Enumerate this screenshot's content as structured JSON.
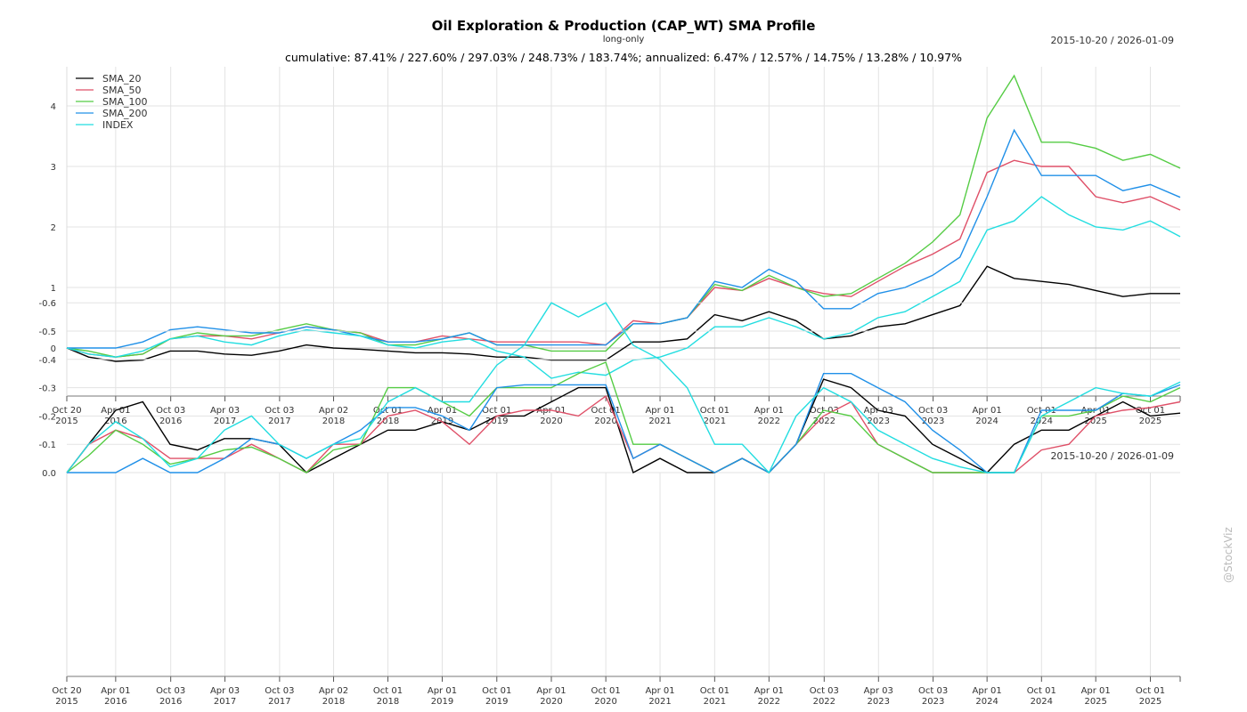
{
  "header": {
    "title": "Oil Exploration & Production (CAP_WT) SMA Profile",
    "subtitle": "long-only",
    "date_range": "2015-10-20 / 2026-01-09",
    "stats": "cumulative: 87.41% / 227.60% / 297.03% / 248.73% / 183.74%; annualized: 6.47% / 12.57% / 14.75% / 13.28% / 10.97%",
    "credit": "@StockViz"
  },
  "chart_data": [
    {
      "type": "line",
      "title": "Oil Exploration & Production (CAP_WT) SMA Profile",
      "legend_placement": "top-left",
      "grid": true,
      "ylim": [
        -0.79,
        4.65
      ],
      "yticks": [
        "0",
        "1",
        "2",
        "3",
        "4"
      ],
      "xticks": [
        [
          "Oct 20",
          "2015"
        ],
        [
          "Apr 01",
          "2016"
        ],
        [
          "Oct 03",
          "2016"
        ],
        [
          "Apr 03",
          "2017"
        ],
        [
          "Oct 03",
          "2017"
        ],
        [
          "Apr 02",
          "2018"
        ],
        [
          "Oct 01",
          "2018"
        ],
        [
          "Apr 01",
          "2019"
        ],
        [
          "Oct 01",
          "2019"
        ],
        [
          "Apr 01",
          "2020"
        ],
        [
          "Oct 01",
          "2020"
        ],
        [
          "Apr 01",
          "2021"
        ],
        [
          "Oct 01",
          "2021"
        ],
        [
          "Apr 01",
          "2022"
        ],
        [
          "Oct 03",
          "2022"
        ],
        [
          "Apr 03",
          "2023"
        ],
        [
          "Oct 03",
          "2023"
        ],
        [
          "Apr 01",
          "2024"
        ],
        [
          "Oct 01",
          "2024"
        ],
        [
          "Apr 01",
          "2025"
        ],
        [
          "Oct 01",
          "2025"
        ]
      ],
      "xtick_dates": [
        "2015-10-20",
        "2016-04-01",
        "2016-10-03",
        "2017-04-03",
        "2017-10-03",
        "2018-04-02",
        "2018-10-01",
        "2019-04-01",
        "2019-10-01",
        "2020-04-01",
        "2020-10-01",
        "2021-04-01",
        "2021-10-01",
        "2022-04-01",
        "2022-10-03",
        "2023-04-03",
        "2023-10-03",
        "2024-04-01",
        "2024-10-01",
        "2025-04-01",
        "2025-10-01"
      ],
      "x": [
        "2015-10-20",
        "2016-01",
        "2016-04",
        "2016-07",
        "2016-10",
        "2017-01",
        "2017-04",
        "2017-07",
        "2017-10",
        "2018-01",
        "2018-04",
        "2018-07",
        "2018-10",
        "2019-01",
        "2019-04",
        "2019-07",
        "2019-10",
        "2020-01",
        "2020-04",
        "2020-07",
        "2020-10",
        "2021-01",
        "2021-04",
        "2021-07",
        "2021-10",
        "2022-01",
        "2022-04",
        "2022-07",
        "2022-10",
        "2023-01",
        "2023-04",
        "2023-07",
        "2023-10",
        "2024-01",
        "2024-04",
        "2024-07",
        "2024-10",
        "2025-01",
        "2025-04",
        "2025-07",
        "2025-10",
        "2026-01-09"
      ],
      "series": [
        {
          "name": "SMA_20",
          "color": "#000000",
          "values": [
            0,
            -0.15,
            -0.22,
            -0.2,
            -0.05,
            -0.05,
            -0.1,
            -0.12,
            -0.05,
            0.05,
            0,
            -0.02,
            -0.05,
            -0.08,
            -0.08,
            -0.1,
            -0.15,
            -0.15,
            -0.2,
            -0.2,
            -0.2,
            0.1,
            0.1,
            0.15,
            0.55,
            0.45,
            0.6,
            0.45,
            0.15,
            0.2,
            0.35,
            0.4,
            0.55,
            0.7,
            1.35,
            1.15,
            1.1,
            1.05,
            0.95,
            0.85,
            0.9,
            0.9
          ]
        },
        {
          "name": "SMA_50",
          "color": "#df5068",
          "values": [
            0,
            -0.1,
            -0.15,
            -0.1,
            0.15,
            0.2,
            0.2,
            0.15,
            0.25,
            0.35,
            0.3,
            0.25,
            0.1,
            0.1,
            0.2,
            0.15,
            0.1,
            0.1,
            0.1,
            0.1,
            0.05,
            0.45,
            0.4,
            0.5,
            1.0,
            0.95,
            1.15,
            1.0,
            0.9,
            0.85,
            1.1,
            1.35,
            1.55,
            1.8,
            2.9,
            3.1,
            3.0,
            3.0,
            2.5,
            2.4,
            2.5,
            2.28
          ]
        },
        {
          "name": "SMA_100",
          "color": "#55cc44",
          "values": [
            0,
            -0.05,
            -0.15,
            -0.1,
            0.15,
            0.25,
            0.2,
            0.2,
            0.3,
            0.4,
            0.3,
            0.25,
            0.05,
            0.05,
            0.15,
            0.25,
            0.05,
            0.05,
            -0.05,
            -0.05,
            -0.05,
            0.4,
            0.4,
            0.5,
            1.05,
            0.95,
            1.2,
            1.0,
            0.85,
            0.9,
            1.15,
            1.4,
            1.75,
            2.2,
            3.8,
            4.5,
            3.4,
            3.4,
            3.3,
            3.1,
            3.2,
            2.97
          ]
        },
        {
          "name": "SMA_200",
          "color": "#2090e8",
          "values": [
            0,
            0,
            0,
            0.1,
            0.3,
            0.35,
            0.3,
            0.25,
            0.25,
            0.35,
            0.3,
            0.2,
            0.1,
            0.1,
            0.15,
            0.25,
            0.05,
            0.05,
            0.05,
            0.05,
            0.05,
            0.4,
            0.4,
            0.5,
            1.1,
            1.0,
            1.3,
            1.1,
            0.65,
            0.65,
            0.9,
            1.0,
            1.2,
            1.5,
            2.5,
            3.6,
            2.85,
            2.85,
            2.85,
            2.6,
            2.7,
            2.49
          ]
        },
        {
          "name": "INDEX",
          "color": "#22dde0",
          "values": [
            0,
            -0.1,
            -0.15,
            -0.05,
            0.15,
            0.2,
            0.1,
            0.05,
            0.2,
            0.3,
            0.25,
            0.2,
            0.05,
            0,
            0.1,
            0.15,
            -0.05,
            -0.15,
            -0.5,
            -0.4,
            -0.45,
            -0.2,
            -0.15,
            0,
            0.35,
            0.35,
            0.5,
            0.35,
            0.15,
            0.25,
            0.5,
            0.6,
            0.85,
            1.1,
            1.95,
            2.1,
            2.5,
            2.2,
            2.0,
            1.95,
            2.1,
            1.84
          ]
        }
      ]
    },
    {
      "type": "line",
      "date_range": "2015-10-20 / 2026-01-09",
      "grid": true,
      "ylim": [
        -0.72,
        0
      ],
      "yticks": [
        "0.0",
        "-0.1",
        "-0.2",
        "-0.3",
        "-0.4",
        "-0.5",
        "-0.6"
      ],
      "series": [
        {
          "name": "SMA_20",
          "color": "#000000",
          "values": [
            0,
            -0.1,
            -0.22,
            -0.25,
            -0.1,
            -0.08,
            -0.12,
            -0.12,
            -0.1,
            0,
            -0.05,
            -0.1,
            -0.15,
            -0.15,
            -0.18,
            -0.15,
            -0.2,
            -0.2,
            -0.25,
            -0.3,
            -0.3,
            0,
            -0.05,
            0,
            0,
            -0.05,
            0,
            -0.1,
            -0.33,
            -0.3,
            -0.22,
            -0.2,
            -0.1,
            -0.05,
            0,
            -0.1,
            -0.15,
            -0.15,
            -0.2,
            -0.25,
            -0.2,
            -0.21
          ]
        },
        {
          "name": "SMA_50",
          "color": "#df5068",
          "values": [
            0,
            -0.1,
            -0.15,
            -0.12,
            -0.05,
            -0.05,
            -0.05,
            -0.1,
            -0.05,
            0,
            -0.1,
            -0.1,
            -0.2,
            -0.22,
            -0.18,
            -0.1,
            -0.2,
            -0.22,
            -0.22,
            -0.2,
            -0.27,
            -0.05,
            -0.1,
            -0.05,
            0,
            -0.05,
            0,
            -0.1,
            -0.2,
            -0.25,
            -0.1,
            -0.05,
            0,
            0,
            0,
            0,
            -0.08,
            -0.1,
            -0.2,
            -0.22,
            -0.23,
            -0.25
          ]
        },
        {
          "name": "SMA_100",
          "color": "#55cc44",
          "values": [
            0,
            -0.06,
            -0.15,
            -0.1,
            -0.03,
            -0.05,
            -0.08,
            -0.09,
            -0.05,
            0,
            -0.08,
            -0.1,
            -0.3,
            -0.3,
            -0.25,
            -0.2,
            -0.3,
            -0.3,
            -0.3,
            -0.35,
            -0.39,
            -0.1,
            -0.1,
            -0.05,
            0,
            -0.05,
            0,
            -0.1,
            -0.22,
            -0.2,
            -0.1,
            -0.05,
            0,
            0,
            0,
            0,
            -0.2,
            -0.2,
            -0.22,
            -0.27,
            -0.25,
            -0.3
          ]
        },
        {
          "name": "SMA_200",
          "color": "#2090e8",
          "values": [
            0,
            0,
            0,
            -0.05,
            0,
            0,
            -0.05,
            -0.12,
            -0.1,
            -0.05,
            -0.1,
            -0.15,
            -0.23,
            -0.23,
            -0.2,
            -0.15,
            -0.3,
            -0.31,
            -0.31,
            -0.31,
            -0.31,
            -0.05,
            -0.1,
            -0.05,
            0,
            -0.05,
            0,
            -0.1,
            -0.35,
            -0.35,
            -0.3,
            -0.25,
            -0.15,
            -0.08,
            0,
            0,
            -0.22,
            -0.22,
            -0.22,
            -0.28,
            -0.27,
            -0.31
          ]
        },
        {
          "name": "INDEX",
          "color": "#22dde0",
          "values": [
            0,
            -0.1,
            -0.18,
            -0.12,
            -0.02,
            -0.05,
            -0.15,
            -0.2,
            -0.1,
            -0.05,
            -0.1,
            -0.12,
            -0.25,
            -0.3,
            -0.25,
            -0.25,
            -0.38,
            -0.45,
            -0.6,
            -0.55,
            -0.6,
            -0.45,
            -0.4,
            -0.3,
            -0.1,
            -0.1,
            0,
            -0.2,
            -0.3,
            -0.25,
            -0.15,
            -0.1,
            -0.05,
            -0.02,
            0,
            0,
            -0.2,
            -0.25,
            -0.3,
            -0.28,
            -0.27,
            -0.32
          ]
        }
      ]
    }
  ]
}
